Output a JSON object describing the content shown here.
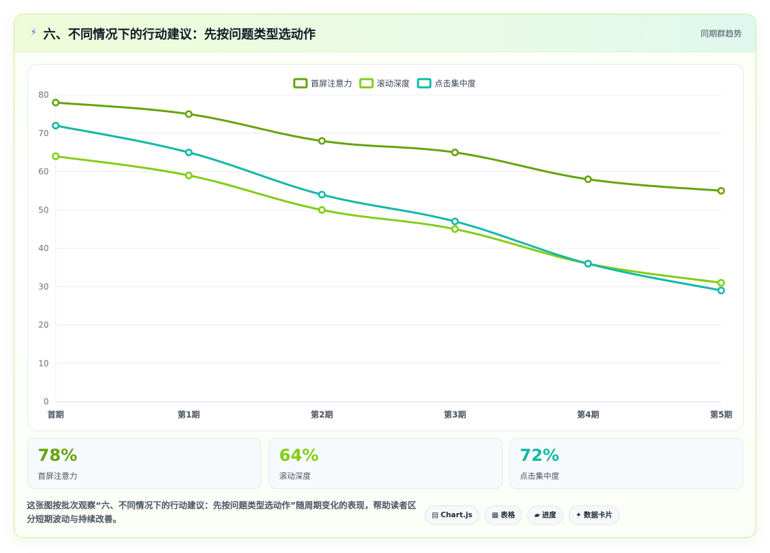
{
  "header": {
    "icon": "lightning-icon",
    "title": "六、不同情况下的行动建议：先按问题类型选动作",
    "badge": "同期群趋势"
  },
  "chart_data": {
    "type": "line",
    "categories": [
      "首期",
      "第1期",
      "第2期",
      "第3期",
      "第4期",
      "第5期"
    ],
    "series": [
      {
        "name": "首屏注意力",
        "color": "#65a30d",
        "values": [
          78,
          75,
          68,
          65,
          58,
          55
        ]
      },
      {
        "name": "滚动深度",
        "color": "#84cc16",
        "values": [
          64,
          59,
          50,
          45,
          36,
          31
        ]
      },
      {
        "name": "点击集中度",
        "color": "#14b8a6",
        "values": [
          72,
          65,
          54,
          47,
          36,
          29
        ]
      }
    ],
    "ylim": [
      0,
      80
    ],
    "yticks": [
      0,
      10,
      20,
      30,
      40,
      50,
      60,
      70,
      80
    ],
    "grid": true,
    "legend": "top-center"
  },
  "kpis": [
    {
      "value": "78%",
      "label": "首屏注意力",
      "color": "#65a30d"
    },
    {
      "value": "64%",
      "label": "滚动深度",
      "color": "#84cc16"
    },
    {
      "value": "72%",
      "label": "点击集中度",
      "color": "#14b8a6"
    }
  ],
  "footer": {
    "text": "这张图按批次观察“六、不同情况下的行动建议：先按问题类型选动作”随周期变化的表现，帮助读者区分短期波动与持续改善。",
    "pills": [
      {
        "icon": "▤",
        "label": "Chart.js"
      },
      {
        "icon": "▦",
        "label": "表格"
      },
      {
        "icon": "▰",
        "label": "进度"
      },
      {
        "icon": "✦",
        "label": "数据卡片"
      }
    ]
  }
}
